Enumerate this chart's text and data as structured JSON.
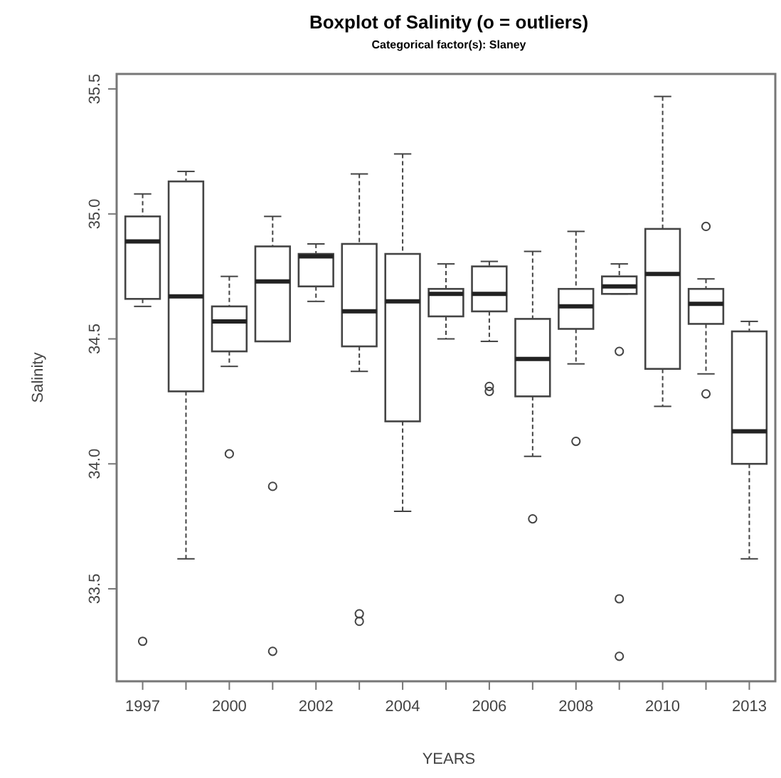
{
  "chart_data": {
    "type": "box",
    "title": "Boxplot of Salinity (o = outliers)",
    "subtitle": "Categorical factor(s):  Slaney",
    "xlabel": "YEARS",
    "ylabel": "Salinity",
    "color": "#444444",
    "categories": [
      "1997",
      null,
      "2000",
      null,
      "2002",
      null,
      "2004",
      null,
      "2006",
      null,
      "2008",
      null,
      "2010",
      null,
      "2013"
    ],
    "ylim": [
      33.13,
      35.56
    ],
    "yticks": [
      33.5,
      {
        "value": 34,
        "label": "34.0"
      },
      34.5,
      {
        "value": 35,
        "label": "35.0"
      },
      35.5
    ],
    "boxes": [
      {
        "low": 34.63,
        "q1": 34.66,
        "median": 34.89,
        "q3": 34.99,
        "high": 35.08,
        "outliers": [
          33.29
        ]
      },
      {
        "low": 33.62,
        "q1": 34.29,
        "median": 34.67,
        "q3": 35.13,
        "high": 35.17
      },
      {
        "low": 34.39,
        "q1": 34.45,
        "median": 34.57,
        "q3": 34.63,
        "high": 34.75,
        "outliers": [
          34.04
        ]
      },
      {
        "low": 34.49,
        "q1": 34.49,
        "median": 34.73,
        "q3": 34.87,
        "high": 34.99,
        "outliers": [
          33.91,
          33.25
        ]
      },
      {
        "low": 34.65,
        "q1": 34.71,
        "median": 34.83,
        "q3": 34.84,
        "high": 34.88
      },
      {
        "low": 34.37,
        "q1": 34.47,
        "median": 34.61,
        "q3": 34.88,
        "high": 35.16,
        "outliers": [
          33.37,
          33.4
        ]
      },
      {
        "low": 33.81,
        "q1": 34.17,
        "median": 34.65,
        "q3": 34.84,
        "high": 35.24
      },
      {
        "low": 34.5,
        "q1": 34.59,
        "median": 34.68,
        "q3": 34.7,
        "high": 34.8
      },
      {
        "low": 34.49,
        "q1": 34.61,
        "median": 34.68,
        "q3": 34.79,
        "high": 34.81,
        "outliers": [
          34.29,
          34.31
        ]
      },
      {
        "low": 34.03,
        "q1": 34.27,
        "median": 34.42,
        "q3": 34.58,
        "high": 34.85,
        "outliers": [
          33.78
        ]
      },
      {
        "low": 34.4,
        "q1": 34.54,
        "median": 34.63,
        "q3": 34.7,
        "high": 34.93,
        "outliers": [
          34.09
        ]
      },
      {
        "low": 34.68,
        "q1": 34.68,
        "median": 34.71,
        "q3": 34.75,
        "high": 34.8,
        "outliers": [
          34.45,
          33.46,
          33.23
        ]
      },
      {
        "low": 34.23,
        "q1": 34.38,
        "median": 34.76,
        "q3": 34.94,
        "high": 35.47
      },
      {
        "low": 34.36,
        "q1": 34.56,
        "median": 34.64,
        "q3": 34.7,
        "high": 34.74,
        "outliers": [
          34.95,
          34.28
        ]
      },
      {
        "low": 33.62,
        "q1": 34.0,
        "median": 34.13,
        "q3": 34.53,
        "high": 34.57
      }
    ]
  }
}
